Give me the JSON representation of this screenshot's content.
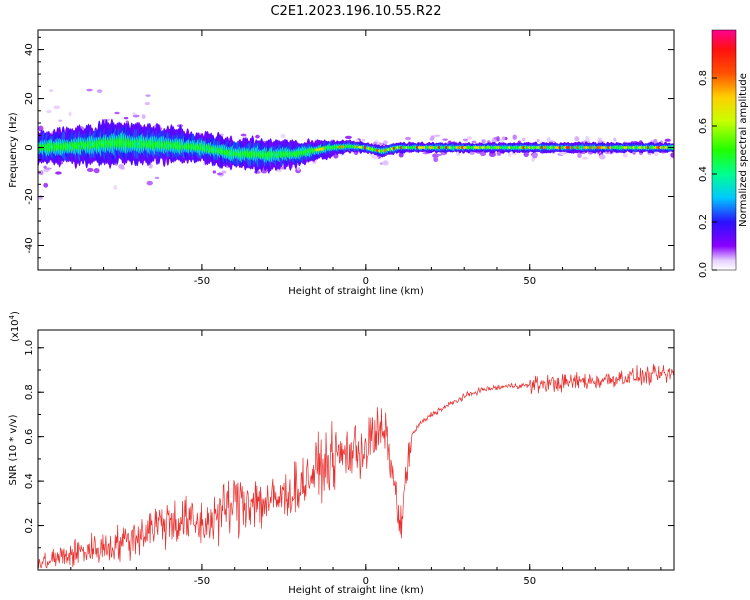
{
  "title": "C2E1.2023.196.10.55.R22",
  "chart_data": [
    {
      "type": "heatmap",
      "xlabel": "Height of straight line (km)",
      "ylabel": "Frequency (Hz)",
      "xlim": [
        -100,
        94
      ],
      "ylim": [
        -50,
        48
      ],
      "xticks": [
        -50,
        0,
        50
      ],
      "yticks": [
        -40,
        -20,
        0,
        20,
        40
      ],
      "colorbar": {
        "label": "Normalized spectral amplitude",
        "range": [
          0,
          1
        ],
        "ticks": [
          "0.0",
          "0.2",
          "0.4",
          "0.6",
          "0.8"
        ]
      },
      "band": {
        "x": [
          -100,
          -90,
          -80,
          -75,
          -70,
          -60,
          -50,
          -40,
          -30,
          -20,
          -15,
          -10,
          -5,
          0,
          5,
          10,
          20,
          40,
          60,
          80,
          94
        ],
        "center": [
          0,
          0.5,
          1.5,
          2,
          1.5,
          1,
          0,
          -2.5,
          -3,
          -2.5,
          -1,
          0,
          0.5,
          0,
          -1.5,
          0,
          0,
          0,
          0,
          0,
          0
        ],
        "width": [
          7,
          7,
          8,
          9,
          8,
          7,
          6,
          6,
          6,
          5,
          4,
          3,
          2.5,
          2,
          2.5,
          2,
          2,
          2,
          2,
          2,
          2
        ]
      },
      "grid": false,
      "legend": "none"
    },
    {
      "type": "line",
      "xlabel": "Height of straight line (km)",
      "ylabel": "SNR (10 * v/v)",
      "yunit": "(x10",
      "yunit_exp": "4",
      "yunit_close": ")",
      "xlim": [
        -100,
        94
      ],
      "ylim": [
        0,
        1.08
      ],
      "xticks": [
        -50,
        0,
        50
      ],
      "yticks": [
        "0.2",
        "0.4",
        "0.6",
        "0.8",
        "1.0"
      ],
      "series": [
        {
          "color": "#e8302e",
          "x": [
            -100,
            -95,
            -90,
            -85,
            -80,
            -75,
            -70,
            -65,
            -60,
            -55,
            -50,
            -45,
            -40,
            -35,
            -30,
            -25,
            -20,
            -15,
            -10,
            -5,
            0,
            3,
            6,
            8,
            10,
            11,
            12,
            14,
            16,
            20,
            25,
            30,
            35,
            40,
            45,
            50,
            55,
            60,
            65,
            70,
            75,
            80,
            85,
            90,
            94
          ],
          "y": [
            0.02,
            0.05,
            0.07,
            0.09,
            0.1,
            0.12,
            0.15,
            0.2,
            0.22,
            0.22,
            0.2,
            0.25,
            0.3,
            0.32,
            0.3,
            0.33,
            0.38,
            0.45,
            0.5,
            0.53,
            0.55,
            0.6,
            0.62,
            0.45,
            0.25,
            0.18,
            0.4,
            0.6,
            0.65,
            0.7,
            0.74,
            0.78,
            0.81,
            0.82,
            0.83,
            0.83,
            0.84,
            0.84,
            0.85,
            0.85,
            0.86,
            0.87,
            0.87,
            0.88,
            0.88
          ]
        }
      ],
      "grid": false,
      "legend": "none"
    }
  ]
}
